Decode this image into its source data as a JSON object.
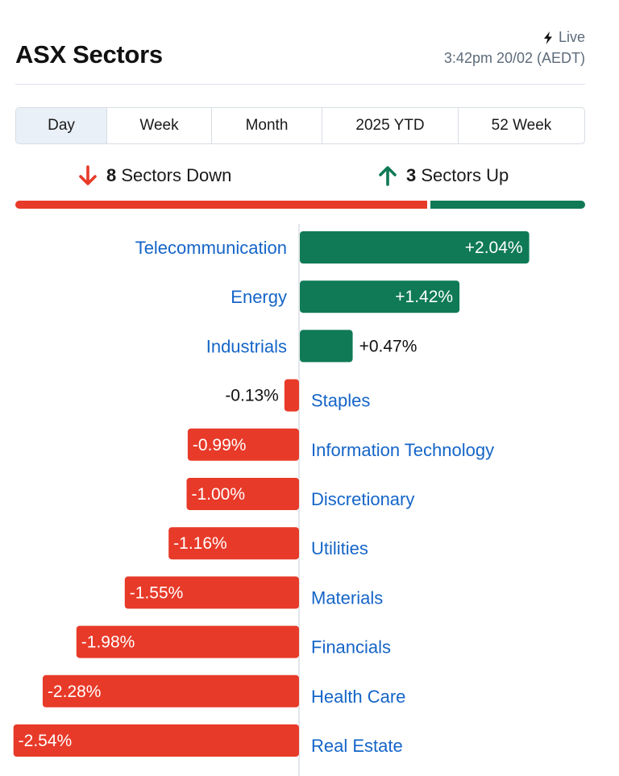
{
  "header": {
    "title": "ASX Sectors",
    "live_label": "Live",
    "timestamp": "3:42pm 20/02 (AEDT)"
  },
  "tabs": [
    {
      "label": "Day",
      "active": true
    },
    {
      "label": "Week",
      "active": false
    },
    {
      "label": "Month",
      "active": false
    },
    {
      "label": "2025 YTD",
      "active": false
    },
    {
      "label": "52 Week",
      "active": false
    }
  ],
  "summary": {
    "down_count": "8",
    "down_label": "Sectors Down",
    "up_count": "3",
    "up_label": "Sectors Up"
  },
  "colors": {
    "positive": "#0f7a55",
    "negative": "#e83a29",
    "link": "#1565c8",
    "axis": "#d9dee4"
  },
  "chart_data": {
    "type": "bar",
    "orientation": "horizontal",
    "categories": [
      "Telecommunication",
      "Energy",
      "Industrials",
      "Staples",
      "Information Technology",
      "Discretionary",
      "Utilities",
      "Materials",
      "Financials",
      "Health Care",
      "Real Estate"
    ],
    "values": [
      2.04,
      1.42,
      0.47,
      -0.13,
      -0.99,
      -1.0,
      -1.16,
      -1.55,
      -1.98,
      -2.28,
      -2.54
    ],
    "value_labels": [
      "+2.04%",
      "+1.42%",
      "+0.47%",
      "-0.13%",
      "-0.99%",
      "-1.00%",
      "-1.16%",
      "-1.55%",
      "-1.98%",
      "-2.28%",
      "-2.54%"
    ],
    "unit": "%"
  }
}
